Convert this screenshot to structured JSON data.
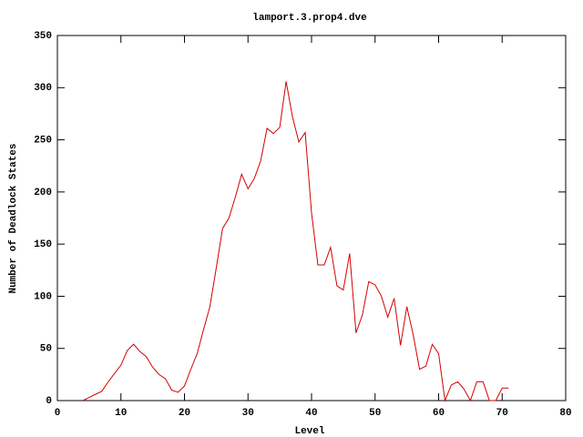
{
  "chart_data": {
    "type": "line",
    "title": "lamport.3.prop4.dve",
    "x_label": "Level",
    "y_label": "Number of Deadlock States",
    "x": [
      4,
      5,
      6,
      7,
      8,
      9,
      10,
      11,
      12,
      13,
      14,
      15,
      16,
      17,
      18,
      19,
      20,
      21,
      22,
      23,
      24,
      25,
      26,
      27,
      28,
      29,
      30,
      31,
      32,
      33,
      34,
      35,
      36,
      37,
      38,
      39,
      40,
      41,
      42,
      43,
      44,
      45,
      46,
      47,
      48,
      49,
      50,
      51,
      52,
      53,
      54,
      55,
      56,
      57,
      58,
      59,
      60,
      61,
      62,
      63,
      64,
      65,
      66,
      67,
      68,
      69,
      70,
      71
    ],
    "series": [
      {
        "color": "#d40000",
        "values": [
          0,
          3,
          6,
          9,
          18,
          26,
          34,
          48,
          54,
          47,
          42,
          32,
          25,
          21,
          10,
          8,
          14,
          30,
          45,
          68,
          90,
          127,
          165,
          175,
          195,
          217,
          203,
          213,
          230,
          261,
          256,
          262,
          306,
          272,
          248,
          257,
          180,
          130,
          130,
          147,
          110,
          106,
          141,
          65,
          82,
          114,
          111,
          100,
          80,
          98,
          53,
          90,
          63,
          30,
          33,
          54,
          45,
          0,
          15,
          18,
          11,
          0,
          18,
          18,
          0,
          0,
          12,
          12
        ]
      }
    ],
    "xlim": [
      0,
      80
    ],
    "xticks": [
      0,
      10,
      20,
      30,
      40,
      50,
      60,
      70,
      80
    ],
    "ylim": [
      0,
      350
    ],
    "yticks": [
      0,
      50,
      100,
      150,
      200,
      250,
      300,
      350
    ],
    "grid": false
  }
}
